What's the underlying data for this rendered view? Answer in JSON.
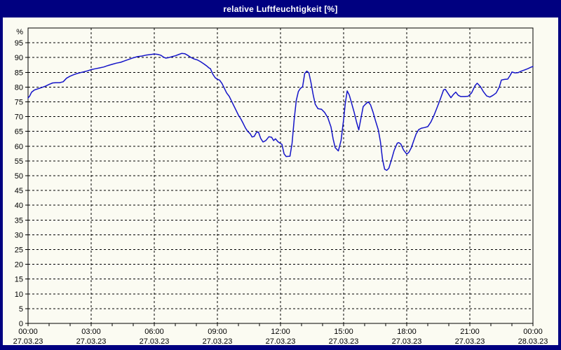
{
  "window": {
    "title": "relative Luftfeuchtigkeit [%]"
  },
  "colors": {
    "frame": "#000080",
    "title_text": "#FFFFFF",
    "plot_background": "#FBFBF2",
    "line": "#1414C8",
    "grid": "#000000",
    "axis_text": "#000000"
  },
  "chart_data": {
    "type": "line",
    "title": "relative Luftfeuchtigkeit [%]",
    "ylabel": "%",
    "xlabel": "",
    "ylim": [
      0,
      100
    ],
    "xlim_hours": [
      0,
      24
    ],
    "grid": "dashed",
    "legend": "none",
    "y_tick_step": 5,
    "y_tick_labels": [
      "0",
      "5",
      "10",
      "15",
      "20",
      "25",
      "30",
      "35",
      "40",
      "45",
      "50",
      "55",
      "60",
      "65",
      "70",
      "75",
      "80",
      "85",
      "90",
      "95"
    ],
    "y_unit_label": "%",
    "x_minor_tick_hours": 1,
    "x_grid_hours": [
      3,
      6,
      9,
      12,
      15,
      18,
      21
    ],
    "x_ticks": [
      {
        "hour": 0,
        "time": "00:00",
        "date": "27.03.23"
      },
      {
        "hour": 3,
        "time": "03:00",
        "date": "27.03.23"
      },
      {
        "hour": 6,
        "time": "06:00",
        "date": "27.03.23"
      },
      {
        "hour": 9,
        "time": "09:00",
        "date": "27.03.23"
      },
      {
        "hour": 12,
        "time": "12:00",
        "date": "27.03.23"
      },
      {
        "hour": 15,
        "time": "15:00",
        "date": "27.03.23"
      },
      {
        "hour": 18,
        "time": "18:00",
        "date": "27.03.23"
      },
      {
        "hour": 21,
        "time": "21:00",
        "date": "27.03.23"
      },
      {
        "hour": 24,
        "time": "00:00",
        "date": "28.03.23"
      }
    ],
    "series": [
      {
        "name": "relative Luftfeuchtigkeit [%]",
        "points": [
          [
            0,
            76.3
          ],
          [
            0.08,
            77.0
          ],
          [
            0.17,
            78.3
          ],
          [
            0.3,
            79.0
          ],
          [
            0.5,
            79.5
          ],
          [
            0.67,
            79.9
          ],
          [
            0.83,
            80.3
          ],
          [
            1.0,
            80.9
          ],
          [
            1.17,
            81.4
          ],
          [
            1.33,
            81.5
          ],
          [
            1.5,
            81.5
          ],
          [
            1.67,
            81.8
          ],
          [
            1.83,
            83.0
          ],
          [
            2.0,
            83.7
          ],
          [
            2.17,
            84.2
          ],
          [
            2.33,
            84.6
          ],
          [
            2.5,
            84.9
          ],
          [
            2.67,
            85.2
          ],
          [
            2.83,
            85.5
          ],
          [
            3.0,
            85.9
          ],
          [
            3.2,
            86.2
          ],
          [
            3.4,
            86.5
          ],
          [
            3.6,
            86.8
          ],
          [
            3.8,
            87.3
          ],
          [
            4.0,
            87.7
          ],
          [
            4.2,
            88.1
          ],
          [
            4.4,
            88.4
          ],
          [
            4.6,
            88.9
          ],
          [
            4.8,
            89.4
          ],
          [
            5.0,
            89.9
          ],
          [
            5.2,
            90.3
          ],
          [
            5.4,
            90.5
          ],
          [
            5.6,
            90.8
          ],
          [
            5.8,
            91.0
          ],
          [
            6.0,
            91.2
          ],
          [
            6.15,
            91.1
          ],
          [
            6.3,
            90.8
          ],
          [
            6.45,
            90.1
          ],
          [
            6.55,
            89.8
          ],
          [
            6.7,
            90.0
          ],
          [
            6.85,
            90.3
          ],
          [
            7.0,
            90.6
          ],
          [
            7.15,
            91.0
          ],
          [
            7.3,
            91.4
          ],
          [
            7.45,
            91.3
          ],
          [
            7.6,
            90.7
          ],
          [
            7.75,
            90.0
          ],
          [
            7.9,
            89.5
          ],
          [
            8.05,
            89.2
          ],
          [
            8.2,
            88.6
          ],
          [
            8.35,
            87.9
          ],
          [
            8.5,
            87.1
          ],
          [
            8.6,
            86.5
          ],
          [
            8.67,
            86.2
          ],
          [
            8.78,
            84.4
          ],
          [
            8.89,
            83.2
          ],
          [
            9.0,
            82.6
          ],
          [
            9.1,
            82.4
          ],
          [
            9.22,
            81.2
          ],
          [
            9.33,
            79.6
          ],
          [
            9.44,
            78.0
          ],
          [
            9.56,
            76.9
          ],
          [
            9.67,
            75.3
          ],
          [
            9.78,
            73.7
          ],
          [
            9.89,
            72.1
          ],
          [
            10.0,
            70.5
          ],
          [
            10.11,
            69.3
          ],
          [
            10.22,
            67.8
          ],
          [
            10.33,
            66.2
          ],
          [
            10.44,
            65.0
          ],
          [
            10.56,
            64.2
          ],
          [
            10.65,
            63.1
          ],
          [
            10.75,
            63.3
          ],
          [
            10.85,
            64.6
          ],
          [
            10.95,
            64.8
          ],
          [
            11.06,
            62.6
          ],
          [
            11.17,
            61.4
          ],
          [
            11.3,
            61.9
          ],
          [
            11.45,
            63.2
          ],
          [
            11.58,
            63.0
          ],
          [
            11.67,
            61.9
          ],
          [
            11.76,
            62.5
          ],
          [
            11.88,
            61.5
          ],
          [
            11.98,
            61.0
          ],
          [
            12.07,
            60.6
          ],
          [
            12.17,
            57.4
          ],
          [
            12.27,
            56.5
          ],
          [
            12.45,
            56.6
          ],
          [
            12.55,
            61.0
          ],
          [
            12.65,
            69.0
          ],
          [
            12.75,
            75.5
          ],
          [
            12.85,
            78.5
          ],
          [
            12.95,
            79.6
          ],
          [
            13.05,
            80.1
          ],
          [
            13.15,
            84.6
          ],
          [
            13.25,
            85.4
          ],
          [
            13.35,
            84.8
          ],
          [
            13.45,
            81.5
          ],
          [
            13.55,
            77.5
          ],
          [
            13.65,
            74.2
          ],
          [
            13.78,
            72.7
          ],
          [
            13.95,
            72.5
          ],
          [
            14.1,
            71.4
          ],
          [
            14.25,
            69.6
          ],
          [
            14.4,
            66.5
          ],
          [
            14.5,
            62.5
          ],
          [
            14.6,
            59.5
          ],
          [
            14.75,
            58.4
          ],
          [
            14.88,
            62.0
          ],
          [
            15.0,
            69.0
          ],
          [
            15.08,
            74.5
          ],
          [
            15.17,
            78.7
          ],
          [
            15.27,
            77.3
          ],
          [
            15.37,
            74.8
          ],
          [
            15.5,
            71.5
          ],
          [
            15.62,
            68.0
          ],
          [
            15.72,
            65.5
          ],
          [
            15.83,
            69.7
          ],
          [
            15.93,
            73.4
          ],
          [
            16.05,
            74.3
          ],
          [
            16.17,
            75.0
          ],
          [
            16.28,
            74.0
          ],
          [
            16.4,
            71.5
          ],
          [
            16.52,
            68.5
          ],
          [
            16.65,
            65.5
          ],
          [
            16.75,
            61.5
          ],
          [
            16.85,
            55.5
          ],
          [
            16.95,
            52.2
          ],
          [
            17.05,
            51.8
          ],
          [
            17.15,
            52.5
          ],
          [
            17.28,
            55.5
          ],
          [
            17.4,
            58.5
          ],
          [
            17.55,
            61.0
          ],
          [
            17.62,
            61.2
          ],
          [
            17.72,
            60.7
          ],
          [
            17.85,
            58.7
          ],
          [
            18.0,
            57.3
          ],
          [
            18.1,
            57.9
          ],
          [
            18.22,
            59.5
          ],
          [
            18.33,
            61.8
          ],
          [
            18.45,
            64.2
          ],
          [
            18.57,
            65.6
          ],
          [
            18.7,
            66.1
          ],
          [
            18.85,
            66.3
          ],
          [
            19.0,
            66.6
          ],
          [
            19.15,
            68.2
          ],
          [
            19.3,
            70.5
          ],
          [
            19.45,
            73.2
          ],
          [
            19.6,
            76.0
          ],
          [
            19.75,
            79.0
          ],
          [
            19.83,
            79.3
          ],
          [
            19.95,
            78.0
          ],
          [
            20.1,
            76.4
          ],
          [
            20.22,
            77.5
          ],
          [
            20.33,
            78.3
          ],
          [
            20.45,
            77.2
          ],
          [
            20.57,
            76.8
          ],
          [
            20.75,
            76.8
          ],
          [
            20.92,
            76.9
          ],
          [
            21.08,
            78.0
          ],
          [
            21.25,
            80.5
          ],
          [
            21.35,
            81.3
          ],
          [
            21.5,
            80.2
          ],
          [
            21.65,
            78.4
          ],
          [
            21.8,
            77.0
          ],
          [
            21.95,
            76.6
          ],
          [
            22.1,
            77.2
          ],
          [
            22.25,
            78.0
          ],
          [
            22.4,
            80.0
          ],
          [
            22.5,
            82.4
          ],
          [
            22.65,
            82.6
          ],
          [
            22.8,
            82.7
          ],
          [
            22.92,
            84.0
          ],
          [
            23.0,
            85.1
          ],
          [
            23.15,
            84.8
          ],
          [
            23.3,
            84.9
          ],
          [
            23.45,
            85.4
          ],
          [
            23.6,
            85.8
          ],
          [
            23.75,
            86.2
          ],
          [
            23.9,
            86.7
          ],
          [
            24.0,
            87.0
          ]
        ]
      }
    ]
  }
}
